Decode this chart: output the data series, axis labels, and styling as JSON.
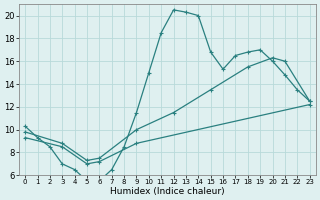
{
  "xlabel": "Humidex (Indice chaleur)",
  "xlim": [
    -0.5,
    23.5
  ],
  "ylim": [
    6,
    21
  ],
  "xticks": [
    0,
    1,
    2,
    3,
    4,
    5,
    6,
    7,
    8,
    9,
    10,
    11,
    12,
    13,
    14,
    15,
    16,
    17,
    18,
    19,
    20,
    21,
    22,
    23
  ],
  "yticks": [
    6,
    8,
    10,
    12,
    14,
    16,
    18,
    20
  ],
  "bg_color": "#dff0f0",
  "grid_color": "#b8dada",
  "line_color": "#2a8080",
  "line1_x": [
    0,
    1,
    2,
    3,
    4,
    5,
    6,
    7,
    8,
    9,
    10,
    11,
    12,
    13,
    14,
    15,
    16,
    17,
    18,
    19,
    20,
    21,
    22,
    23
  ],
  "line1_y": [
    10.3,
    9.3,
    8.5,
    7.0,
    6.5,
    5.5,
    5.5,
    6.5,
    8.5,
    11.5,
    15.0,
    18.5,
    20.5,
    20.3,
    20.0,
    16.8,
    15.3,
    16.5,
    16.8,
    17.0,
    16.0,
    14.8,
    13.5,
    12.5
  ],
  "line2_x": [
    0,
    3,
    5,
    6,
    9,
    12,
    15,
    18,
    20,
    21,
    23
  ],
  "line2_y": [
    9.8,
    8.8,
    7.3,
    7.5,
    10.0,
    11.5,
    13.5,
    15.5,
    16.3,
    16.0,
    12.5
  ],
  "line3_x": [
    0,
    3,
    5,
    6,
    9,
    23
  ],
  "line3_y": [
    9.3,
    8.5,
    7.0,
    7.2,
    8.8,
    12.2
  ]
}
